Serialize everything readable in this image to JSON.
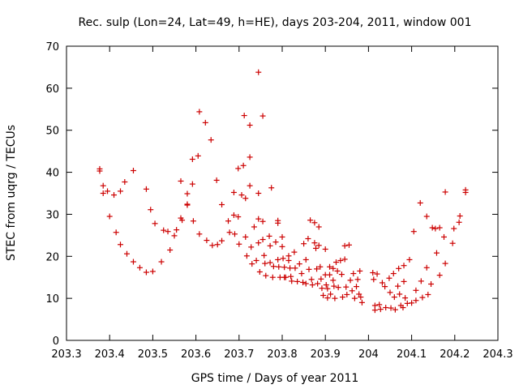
{
  "chart_data": {
    "type": "scatter",
    "title": "Rec. sulp (Lon=24, Lat=49, h=HE), days 203-204, 2011, window 001",
    "xlabel": "GPS time / Days of year 2011",
    "ylabel": "STEC from uqrg / TECUs",
    "xlim": [
      203.3,
      204.3
    ],
    "ylim": [
      0,
      70
    ],
    "xticks": [
      203.3,
      203.4,
      203.5,
      203.6,
      203.7,
      203.8,
      203.9,
      204.0,
      204.1,
      204.2,
      204.3
    ],
    "xtick_labels": [
      "203.3",
      "203.4",
      "203.5",
      "203.6",
      "203.7",
      "203.8",
      "203.9",
      "204",
      "204.1",
      "204.2",
      "204.3"
    ],
    "yticks": [
      0,
      10,
      20,
      30,
      40,
      50,
      60,
      70
    ],
    "ytick_labels": [
      "0",
      "10",
      "20",
      "30",
      "40",
      "50",
      "60",
      "70"
    ],
    "grid": false,
    "legend": "none",
    "marker": "plus",
    "color": "#cc0000",
    "series": [
      {
        "points": [
          [
            203.377,
            40.8
          ],
          [
            203.377,
            40.3
          ],
          [
            203.385,
            36.8
          ],
          [
            203.385,
            35.0
          ],
          [
            203.395,
            35.5
          ],
          [
            203.4,
            29.5
          ],
          [
            203.41,
            34.6
          ],
          [
            203.415,
            25.7
          ],
          [
            203.425,
            35.5
          ],
          [
            203.425,
            22.8
          ],
          [
            203.435,
            37.7
          ],
          [
            203.44,
            20.6
          ],
          [
            203.455,
            40.4
          ],
          [
            203.455,
            18.7
          ],
          [
            203.47,
            17.3
          ],
          [
            203.485,
            36.0
          ],
          [
            203.485,
            16.2
          ],
          [
            203.495,
            31.1
          ],
          [
            203.5,
            16.4
          ],
          [
            203.505,
            27.8
          ],
          [
            203.52,
            18.7
          ],
          [
            203.525,
            26.2
          ],
          [
            203.535,
            25.9
          ],
          [
            203.54,
            21.5
          ],
          [
            203.55,
            24.9
          ],
          [
            203.555,
            26.3
          ],
          [
            203.565,
            37.9
          ],
          [
            203.565,
            29.1
          ],
          [
            203.568,
            28.6
          ],
          [
            203.58,
            34.9
          ],
          [
            203.58,
            32.2
          ],
          [
            203.58,
            32.4
          ],
          [
            203.592,
            43.1
          ],
          [
            203.592,
            37.2
          ],
          [
            203.594,
            28.4
          ],
          [
            203.605,
            43.9
          ],
          [
            203.608,
            54.4
          ],
          [
            203.608,
            25.3
          ],
          [
            203.622,
            51.8
          ],
          [
            203.625,
            23.8
          ],
          [
            203.635,
            47.7
          ],
          [
            203.638,
            22.6
          ],
          [
            203.648,
            38.1
          ],
          [
            203.65,
            22.8
          ],
          [
            203.66,
            32.3
          ],
          [
            203.66,
            23.7
          ],
          [
            203.675,
            28.4
          ],
          [
            203.678,
            25.7
          ],
          [
            203.688,
            35.2
          ],
          [
            203.688,
            29.8
          ],
          [
            203.69,
            25.3
          ],
          [
            203.698,
            40.9
          ],
          [
            203.698,
            29.4
          ],
          [
            203.7,
            22.9
          ],
          [
            203.706,
            34.6
          ],
          [
            203.71,
            41.6
          ],
          [
            203.712,
            53.5
          ],
          [
            203.715,
            33.8
          ],
          [
            203.715,
            24.6
          ],
          [
            203.718,
            20.1
          ],
          [
            203.725,
            51.2
          ],
          [
            203.725,
            43.6
          ],
          [
            203.725,
            36.8
          ],
          [
            203.728,
            22.2
          ],
          [
            203.73,
            18.2
          ],
          [
            203.735,
            27.0
          ],
          [
            203.74,
            19.0
          ],
          [
            203.745,
            63.8
          ],
          [
            203.745,
            35.0
          ],
          [
            203.745,
            28.9
          ],
          [
            203.745,
            23.2
          ],
          [
            203.748,
            16.3
          ],
          [
            203.755,
            53.4
          ],
          [
            203.755,
            28.3
          ],
          [
            203.755,
            24.0
          ],
          [
            203.758,
            20.2
          ],
          [
            203.76,
            18.3
          ],
          [
            203.762,
            15.4
          ],
          [
            203.77,
            24.8
          ],
          [
            203.772,
            22.5
          ],
          [
            203.772,
            18.5
          ],
          [
            203.775,
            36.3
          ],
          [
            203.778,
            15.0
          ],
          [
            203.78,
            17.6
          ],
          [
            203.785,
            23.4
          ],
          [
            203.79,
            28.5
          ],
          [
            203.79,
            27.9
          ],
          [
            203.79,
            19.2
          ],
          [
            203.792,
            17.5
          ],
          [
            203.795,
            15.0
          ],
          [
            203.8,
            24.6
          ],
          [
            203.8,
            22.3
          ],
          [
            203.802,
            19.5
          ],
          [
            203.805,
            17.4
          ],
          [
            203.805,
            15.0
          ],
          [
            203.808,
            15.0
          ],
          [
            203.815,
            20.1
          ],
          [
            203.815,
            19.0
          ],
          [
            203.818,
            17.2
          ],
          [
            203.82,
            15.2
          ],
          [
            203.822,
            14.1
          ],
          [
            203.828,
            21.0
          ],
          [
            203.83,
            17.2
          ],
          [
            203.835,
            14.0
          ],
          [
            203.84,
            18.2
          ],
          [
            203.845,
            15.9
          ],
          [
            203.848,
            13.8
          ],
          [
            203.85,
            23.0
          ],
          [
            203.855,
            19.2
          ],
          [
            203.855,
            13.5
          ],
          [
            203.86,
            24.2
          ],
          [
            203.862,
            16.9
          ],
          [
            203.865,
            28.6
          ],
          [
            203.868,
            14.5
          ],
          [
            203.87,
            13.2
          ],
          [
            203.875,
            28.0
          ],
          [
            203.875,
            23.2
          ],
          [
            203.878,
            21.9
          ],
          [
            203.88,
            17.0
          ],
          [
            203.882,
            13.5
          ],
          [
            203.885,
            27.0
          ],
          [
            203.885,
            22.6
          ],
          [
            203.888,
            17.5
          ],
          [
            203.89,
            14.6
          ],
          [
            203.892,
            12.4
          ],
          [
            203.895,
            10.7
          ],
          [
            203.9,
            21.7
          ],
          [
            203.9,
            15.6
          ],
          [
            203.902,
            13.2
          ],
          [
            203.905,
            12.3
          ],
          [
            203.905,
            10.1
          ],
          [
            203.91,
            17.5
          ],
          [
            203.91,
            15.6
          ],
          [
            203.912,
            11.0
          ],
          [
            203.918,
            17.1
          ],
          [
            203.918,
            14.3
          ],
          [
            203.92,
            12.9
          ],
          [
            203.922,
            10.0
          ],
          [
            203.925,
            18.6
          ],
          [
            203.928,
            16.5
          ],
          [
            203.93,
            12.6
          ],
          [
            203.935,
            19.0
          ],
          [
            203.938,
            15.7
          ],
          [
            203.94,
            10.3
          ],
          [
            203.945,
            22.5
          ],
          [
            203.945,
            19.3
          ],
          [
            203.948,
            12.7
          ],
          [
            203.95,
            10.9
          ],
          [
            203.955,
            22.7
          ],
          [
            203.958,
            14.3
          ],
          [
            203.962,
            11.8
          ],
          [
            203.965,
            15.9
          ],
          [
            203.968,
            10.0
          ],
          [
            203.972,
            12.8
          ],
          [
            203.975,
            14.5
          ],
          [
            203.978,
            11.0
          ],
          [
            203.98,
            16.5
          ],
          [
            203.982,
            10.3
          ],
          [
            203.985,
            9.0
          ],
          [
            204.01,
            16.1
          ],
          [
            204.012,
            14.5
          ],
          [
            204.015,
            8.3
          ],
          [
            204.015,
            7.2
          ],
          [
            204.02,
            15.8
          ],
          [
            204.025,
            8.5
          ],
          [
            204.028,
            7.4
          ],
          [
            204.032,
            13.7
          ],
          [
            204.038,
            12.8
          ],
          [
            204.04,
            7.8
          ],
          [
            204.048,
            14.8
          ],
          [
            204.05,
            11.4
          ],
          [
            204.052,
            7.7
          ],
          [
            204.058,
            15.9
          ],
          [
            204.06,
            10.3
          ],
          [
            204.062,
            7.3
          ],
          [
            204.068,
            12.9
          ],
          [
            204.07,
            17.1
          ],
          [
            204.072,
            11.0
          ],
          [
            204.075,
            8.3
          ],
          [
            204.08,
            7.8
          ],
          [
            204.082,
            17.8
          ],
          [
            204.082,
            14.0
          ],
          [
            204.085,
            10.1
          ],
          [
            204.09,
            8.8
          ],
          [
            204.095,
            19.2
          ],
          [
            204.1,
            8.9
          ],
          [
            204.105,
            25.9
          ],
          [
            204.11,
            11.9
          ],
          [
            204.11,
            9.5
          ],
          [
            204.12,
            32.7
          ],
          [
            204.122,
            14.1
          ],
          [
            204.125,
            10.2
          ],
          [
            204.135,
            29.5
          ],
          [
            204.135,
            17.3
          ],
          [
            204.138,
            10.9
          ],
          [
            204.145,
            13.4
          ],
          [
            204.148,
            26.8
          ],
          [
            204.155,
            26.6
          ],
          [
            204.158,
            20.8
          ],
          [
            204.165,
            15.5
          ],
          [
            204.165,
            26.8
          ],
          [
            204.175,
            24.6
          ],
          [
            204.178,
            18.3
          ],
          [
            204.178,
            35.3
          ],
          [
            204.195,
            23.1
          ],
          [
            204.198,
            26.6
          ],
          [
            204.21,
            28.1
          ],
          [
            204.212,
            29.6
          ],
          [
            204.225,
            35.2
          ],
          [
            204.225,
            35.8
          ]
        ]
      }
    ]
  }
}
